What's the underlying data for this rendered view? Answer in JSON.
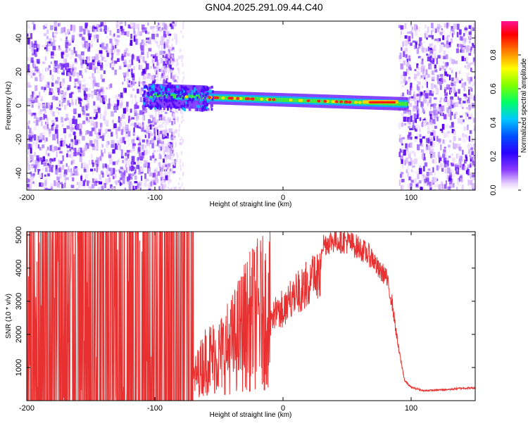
{
  "title": "GN04.2025.291.09.44.C40",
  "chart_data": [
    {
      "type": "heatmap",
      "name": "spectrogram",
      "xlabel": "Height of straight line (km)",
      "ylabel": "Frequency (Hz)",
      "xlim": [
        -200,
        150
      ],
      "ylim": [
        -50,
        50
      ],
      "xticks": [
        -200,
        -100,
        0,
        100
      ],
      "yticks": [
        -40,
        -20,
        0,
        20,
        40
      ],
      "colorbar": {
        "label": "Normalized spectral amplitude",
        "range": [
          0,
          1
        ],
        "ticks": [
          0.0,
          0.2,
          0.4,
          0.6,
          0.8
        ],
        "colors": [
          "#ffffff",
          "#e6d0ff",
          "#8a3bff",
          "#4b00ff",
          "#0000ff",
          "#00bfff",
          "#00ff80",
          "#66ff00",
          "#ffff00",
          "#ff7f00",
          "#ff0000",
          "#ff1493"
        ]
      },
      "features": [
        {
          "name": "noise-left",
          "x": [
            -200,
            -85
          ],
          "note": "dense broadband purple speckle"
        },
        {
          "name": "noise-right",
          "x": [
            90,
            150
          ],
          "note": "dense broadband purple speckle"
        },
        {
          "name": "signal-trace",
          "x": [
            -105,
            95
          ],
          "freq_start": 6,
          "freq_end": 1,
          "note": "narrow high-amplitude band near 0-5 Hz"
        },
        {
          "name": "peak",
          "x": [
            62,
            90
          ],
          "amplitude": 0.95
        }
      ]
    },
    {
      "type": "line",
      "name": "snr",
      "xlabel": "Height of straight line (km)",
      "ylabel": "SNR (10 * v/v)",
      "xlim": [
        -200,
        150
      ],
      "ylim": [
        0,
        5100
      ],
      "xticks": [
        -200,
        -100,
        0,
        100
      ],
      "yticks": [
        1000,
        2000,
        3000,
        4000,
        5000
      ],
      "series": [
        {
          "name": "SNR",
          "color": "#e83030",
          "x": [
            -200,
            -180,
            -160,
            -140,
            -120,
            -100,
            -90,
            -80,
            -70,
            -60,
            -50,
            -40,
            -30,
            -20,
            -10,
            0,
            10,
            20,
            30,
            40,
            50,
            60,
            70,
            75,
            80,
            85,
            90,
            95,
            100,
            110,
            120,
            130,
            140,
            150
          ],
          "values": [
            200,
            220,
            250,
            300,
            280,
            300,
            380,
            420,
            700,
            1400,
            1500,
            1900,
            2500,
            2900,
            3000,
            3400,
            3900,
            4300,
            4700,
            4850,
            4800,
            4600,
            4300,
            3900,
            3800,
            3000,
            1600,
            600,
            400,
            300,
            320,
            340,
            380,
            380
          ]
        }
      ]
    }
  ]
}
